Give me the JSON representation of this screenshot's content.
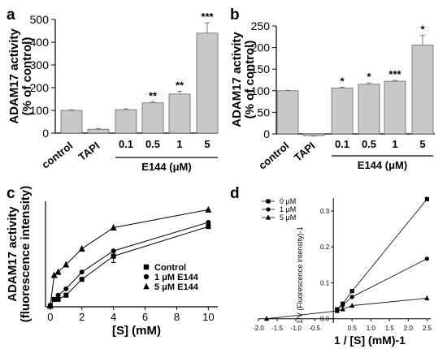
{
  "chart_data": [
    {
      "panel": "a",
      "type": "bar",
      "ylabel": [
        "ADAM17 activity",
        "(% of control)"
      ],
      "ylim": [
        0,
        500
      ],
      "yticks": [
        0,
        100,
        200,
        300,
        400,
        500
      ],
      "categories": [
        "control",
        "TAPI",
        "0.1",
        "0.5",
        "1",
        "5"
      ],
      "values": [
        100,
        17,
        103,
        133,
        172,
        440
      ],
      "errors": [
        3,
        3,
        4,
        5,
        12,
        45
      ],
      "annotations": [
        "",
        "",
        "",
        "**",
        "**",
        "***"
      ],
      "group_label": "E144 (μM)",
      "bar_color": "#c8c8c8"
    },
    {
      "panel": "b",
      "type": "bar",
      "ylabel": [
        "ADAM17 activity",
        "(% of control)"
      ],
      "ylim": [
        0,
        250
      ],
      "yticks": [
        0,
        50,
        100,
        150,
        200,
        250
      ],
      "categories": [
        "control",
        "TAPI",
        "0.1",
        "0.5",
        "1",
        "5"
      ],
      "values": [
        100,
        -4,
        106,
        115,
        122,
        206
      ],
      "errors": [
        1,
        1,
        2,
        3,
        2,
        22
      ],
      "annotations": [
        "",
        "",
        "*",
        "*",
        "***",
        "*"
      ],
      "group_label": "E144 (μM)",
      "bar_color": "#c8c8c8"
    },
    {
      "panel": "c",
      "type": "line",
      "xlabel": "[S] (mM)",
      "ylabel": [
        "ADAM17 activity",
        "(fluorescence intensity)"
      ],
      "xticks": [
        0,
        2,
        4,
        6,
        8,
        10
      ],
      "xlim": [
        -0.3,
        10.6
      ],
      "ylim": [
        0,
        50
      ],
      "x": [
        0,
        0.25,
        0.5,
        1,
        2,
        4,
        10
      ],
      "series": [
        {
          "name": "Control",
          "marker": "square",
          "values": [
            0.5,
            3.5,
            3.5,
            5.5,
            13,
            24,
            38
          ],
          "errors": [
            0,
            0,
            0,
            0,
            0,
            3,
            0
          ]
        },
        {
          "name": "1 μM E144",
          "marker": "circle",
          "values": [
            0.5,
            3.5,
            5.5,
            8.5,
            16.5,
            26.5,
            40
          ],
          "errors": [
            0,
            0,
            0,
            0,
            0,
            0,
            0
          ]
        },
        {
          "name": "5 μM E144",
          "marker": "triangle",
          "values": [
            0.5,
            15,
            16.5,
            20,
            27.5,
            37.5,
            46
          ],
          "errors": [
            0,
            0,
            0,
            0,
            0,
            0,
            0
          ]
        }
      ],
      "legend_position": "right"
    },
    {
      "panel": "d",
      "type": "line",
      "xlabel": "1 / [S] (mM)-1",
      "ylabel": "1/V (Fluorescence intensity)-1",
      "xticks": [
        "-2.0",
        "-1.5",
        "-1.0",
        "-0.5",
        "0.0",
        "0.5",
        "1.0",
        "1.5",
        "2.0",
        "2.5"
      ],
      "yticks": [
        "0.0",
        "0.1",
        "0.2",
        "0.3"
      ],
      "xlim": [
        -2.0,
        2.6
      ],
      "ylim": [
        -0.012,
        0.345
      ],
      "series": [
        {
          "name": "0 μM",
          "marker": "square",
          "x": [
            0.1,
            0.25,
            0.5,
            2.5
          ],
          "values": [
            0.0263,
            0.0417,
            0.0769,
            0.333
          ]
        },
        {
          "name": "1 μM",
          "marker": "circle",
          "x": [
            0.1,
            0.25,
            0.5,
            2.5
          ],
          "values": [
            0.025,
            0.0377,
            0.0606,
            0.167
          ]
        },
        {
          "name": "5 μM",
          "marker": "triangle",
          "x": [
            -1.78,
            0.1,
            0.25,
            0.5,
            2.5
          ],
          "values": [
            0,
            0.0217,
            0.0267,
            0.0364,
            0.0571
          ]
        }
      ],
      "legend_position": "top-left"
    }
  ]
}
